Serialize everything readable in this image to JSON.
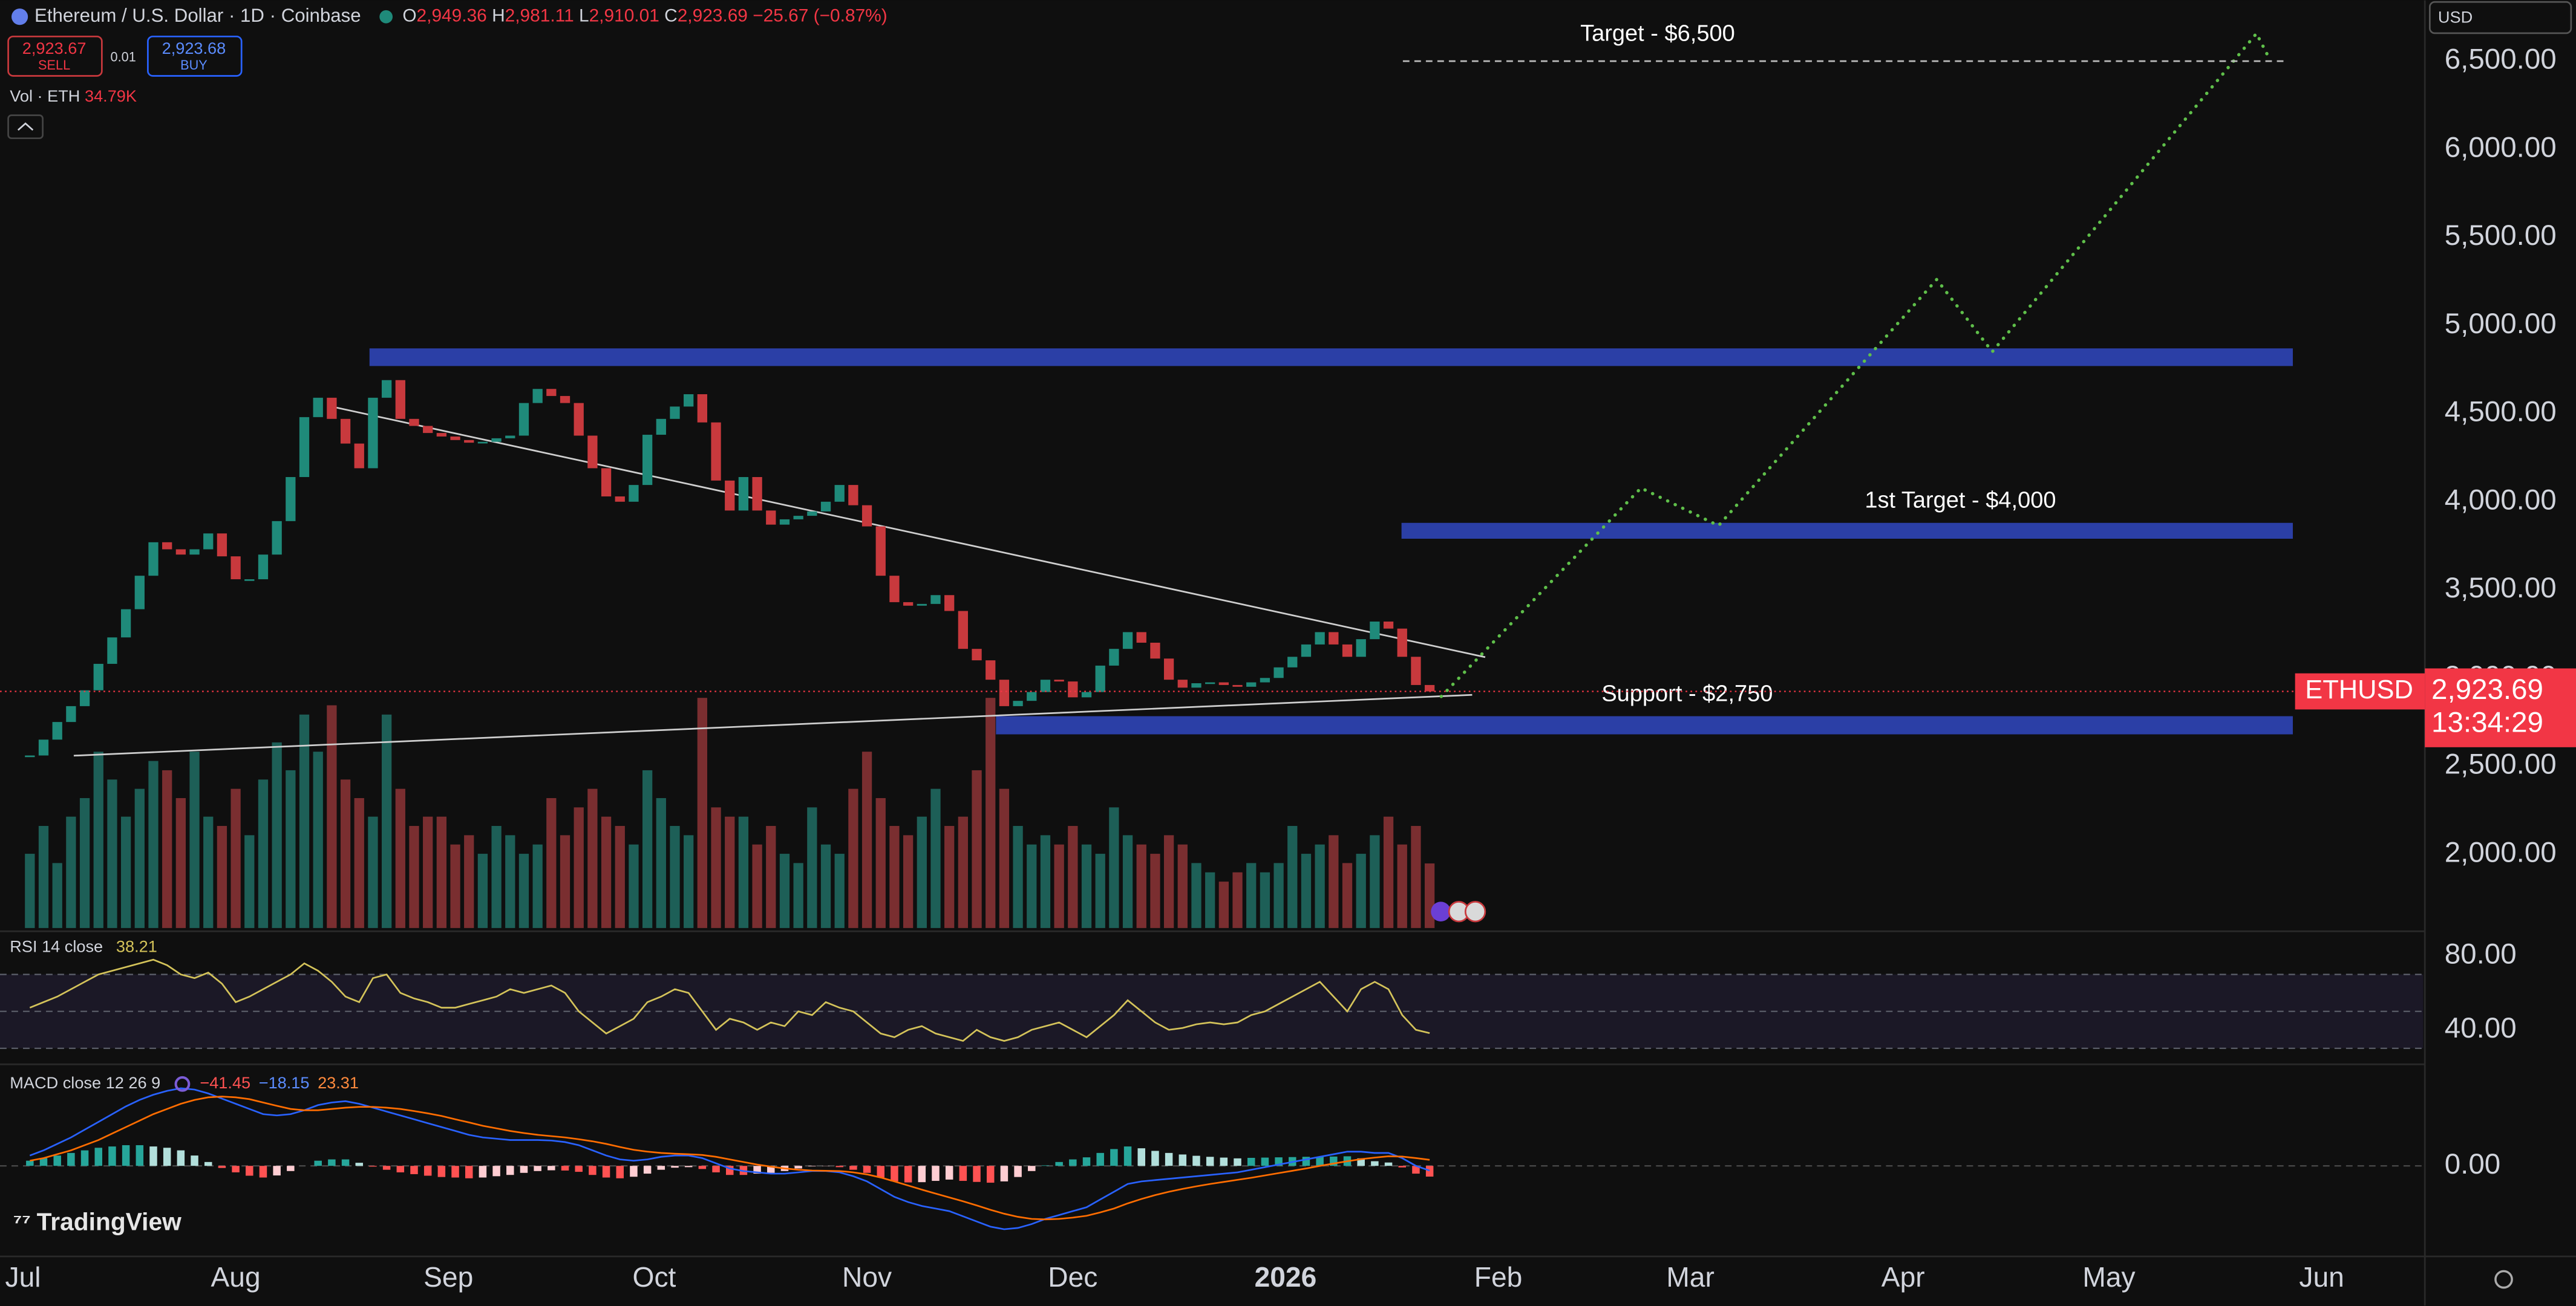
{
  "header": {
    "title": "Ethereum / U.S. Dollar · 1D · Coinbase",
    "open_label": "O",
    "open": "2,949.36",
    "high_label": "H",
    "high": "2,981.11",
    "low_label": "L",
    "low": "2,910.01",
    "close_label": "C",
    "close": "2,923.69",
    "change": "−25.67 (−0.87%)",
    "sell_price": "2,923.67",
    "sell": "SELL",
    "spread": "0.01",
    "buy_price": "2,923.68",
    "buy": "BUY",
    "volume_label": "Vol · ETH",
    "currency": "USD",
    "brand": "TradingView"
  },
  "chart_data": {
    "type": "candlestick",
    "x": [
      1,
      3,
      5,
      7,
      9,
      11,
      13,
      15,
      17,
      19,
      21,
      23,
      25,
      27,
      29,
      31,
      33,
      35,
      37,
      39,
      41,
      43,
      45,
      47,
      49,
      51,
      53,
      55,
      57,
      59,
      61,
      63,
      65,
      67,
      69,
      71,
      73,
      75,
      77,
      79,
      81,
      83,
      85,
      87,
      89,
      91,
      93,
      95,
      97,
      99,
      101,
      103,
      105,
      107,
      109,
      111,
      113,
      115,
      117,
      119,
      121,
      123,
      125,
      127,
      129,
      131,
      133,
      135,
      137,
      139,
      141,
      143,
      145,
      147,
      149,
      151,
      153,
      155,
      157,
      159,
      161,
      163,
      165,
      167,
      169,
      171,
      173,
      175,
      177,
      179,
      181,
      183,
      185,
      187,
      189,
      191,
      193,
      195,
      197,
      199,
      201,
      203,
      205
    ],
    "close": [
      2560,
      2650,
      2750,
      2840,
      2930,
      3080,
      3230,
      3390,
      3580,
      3770,
      3730,
      3700,
      3730,
      3820,
      3690,
      3560,
      3560,
      3700,
      3890,
      4140,
      4480,
      4590,
      4470,
      4330,
      4190,
      4590,
      4690,
      4470,
      4430,
      4390,
      4370,
      4350,
      4335,
      4340,
      4360,
      4375,
      4560,
      4640,
      4600,
      4560,
      4375,
      4190,
      4030,
      4000,
      4095,
      4380,
      4470,
      4540,
      4610,
      4450,
      4120,
      3950,
      4140,
      3950,
      3870,
      3900,
      3920,
      3945,
      4000,
      4095,
      3980,
      3860,
      3580,
      3430,
      3410,
      3420,
      3470,
      3380,
      3165,
      3100,
      2990,
      2840,
      2870,
      2920,
      2990,
      2980,
      2890,
      2920,
      3070,
      3165,
      3260,
      3200,
      3110,
      2990,
      2945,
      2970,
      2975,
      2960,
      2950,
      2975,
      3000,
      3060,
      3120,
      3190,
      3260,
      3190,
      3120,
      3220,
      3320,
      3280,
      3120,
      2960,
      2923.69
    ],
    "volume": [
      40,
      55,
      35,
      60,
      70,
      95,
      80,
      60,
      75,
      90,
      85,
      70,
      95,
      60,
      55,
      75,
      50,
      80,
      100,
      85,
      115,
      95,
      120,
      80,
      70,
      60,
      115,
      75,
      55,
      60,
      60,
      45,
      50,
      40,
      55,
      50,
      40,
      45,
      70,
      50,
      65,
      75,
      60,
      55,
      45,
      85,
      70,
      55,
      50,
      124,
      65,
      60,
      60,
      45,
      55,
      40,
      35,
      65,
      45,
      40,
      75,
      95,
      70,
      55,
      50,
      60,
      75,
      55,
      60,
      85,
      124,
      75,
      55,
      45,
      50,
      45,
      55,
      45,
      40,
      65,
      50,
      45,
      40,
      50,
      45,
      35,
      30,
      25,
      30,
      35,
      30,
      35,
      55,
      40,
      45,
      50,
      35,
      40,
      50,
      60,
      45,
      55,
      34.79
    ],
    "volume_value_label": "34.79K",
    "volume_ylim": [
      0,
      230
    ],
    "colors": {
      "up": "#1f8a7a",
      "down": "#c8393d",
      "volume_up": "#1d5f57",
      "volume_down": "#7a2e30"
    },
    "xlim": [
      -3.35,
      349.8
    ],
    "xticks": [
      {
        "value": 0,
        "label": "Jul"
      },
      {
        "value": 31,
        "label": "Aug"
      },
      {
        "value": 62,
        "label": "Sep"
      },
      {
        "value": 92,
        "label": "Oct"
      },
      {
        "value": 123,
        "label": "Nov"
      },
      {
        "value": 153,
        "label": "Dec"
      },
      {
        "value": 184,
        "label": "2026"
      },
      {
        "value": 215,
        "label": "Feb"
      },
      {
        "value": 243,
        "label": "Mar"
      },
      {
        "value": 274,
        "label": "Apr"
      },
      {
        "value": 304,
        "label": "May"
      },
      {
        "value": 335,
        "label": "Jun"
      }
    ],
    "ylim": [
      1581,
      6845
    ],
    "yticks": [
      {
        "value": 2000,
        "label": "2,000.00"
      },
      {
        "value": 2500,
        "label": "2,500.00"
      },
      {
        "value": 3000,
        "label": "3,000.00"
      },
      {
        "value": 3500,
        "label": "3,500.00"
      },
      {
        "value": 4000,
        "label": "4,000.00"
      },
      {
        "value": 4500,
        "label": "4,500.00"
      },
      {
        "value": 5000,
        "label": "5,000.00"
      },
      {
        "value": 5500,
        "label": "5,500.00"
      },
      {
        "value": 6000,
        "label": "6,000.00"
      },
      {
        "value": 6500,
        "label": "6,500.00"
      }
    ],
    "price_label": {
      "symbol": "ETHUSD",
      "value_label": "2,923.69",
      "countdown": "13:34:29",
      "color": "#f23645"
    },
    "zones": [
      {
        "range": [
          4770,
          4870
        ],
        "x": [
          50.5,
          330.8
        ]
      },
      {
        "label": "1st Target - $4,000",
        "range": [
          3790,
          3880
        ],
        "x": [
          200.9,
          330.8
        ]
      },
      {
        "label": "Support - $2,750",
        "range": [
          2680,
          2783
        ],
        "x": [
          141.8,
          330.8
        ]
      }
    ],
    "zone_color": "#2b3fa6",
    "target": {
      "label": "Target - $6,500",
      "value": 6500,
      "x": [
        201.1,
        330
      ]
    },
    "trendlines": [
      {
        "x": [
          45.7,
          213.1
        ],
        "y": [
          4534,
          3118
        ]
      },
      {
        "x": [
          7.4,
          211.2
        ],
        "y": [
          2559,
          2904
        ]
      }
    ],
    "projection": {
      "x": [
        206.7,
        235.8,
        247.1,
        278.9,
        287,
        325.5,
        327.2
      ],
      "y": [
        2895,
        4078,
        3864,
        5261,
        4851,
        6657,
        6528
      ],
      "color": "#5fbf4a"
    },
    "rsi": {
      "label": "RSI 14 close",
      "value_label": "38.21",
      "color": "#d4c35a",
      "ylim": [
        24,
        90.7
      ],
      "yticks": [
        {
          "value": 80,
          "label": "80.00"
        },
        {
          "value": 40,
          "label": "40.00"
        }
      ],
      "bands": [
        30,
        50,
        70
      ],
      "values": [
        52,
        55,
        58,
        62,
        66,
        70,
        72,
        74,
        76,
        78,
        75,
        70,
        68,
        71,
        65,
        55,
        58,
        62,
        66,
        70,
        76,
        72,
        66,
        58,
        55,
        68,
        70,
        60,
        57,
        55,
        52,
        52,
        54,
        56,
        58,
        62,
        60,
        62,
        64,
        60,
        50,
        44,
        38,
        42,
        46,
        55,
        58,
        62,
        60,
        50,
        40,
        46,
        44,
        40,
        44,
        42,
        50,
        48,
        55,
        52,
        50,
        44,
        38,
        36,
        40,
        42,
        38,
        36,
        34,
        40,
        36,
        34,
        36,
        40,
        42,
        44,
        40,
        36,
        42,
        48,
        56,
        50,
        44,
        40,
        41,
        43,
        44,
        43,
        44,
        48,
        50,
        54,
        58,
        62,
        66,
        58,
        50,
        62,
        66,
        62,
        48,
        40,
        38.21
      ]
    },
    "macd": {
      "label": "MACD close 12 26 9",
      "ylim": [
        -350,
        380
      ],
      "yticks": [
        {
          "value": 0,
          "label": "0.00"
        }
      ],
      "histogram": {
        "value_label": "−41.45",
        "colors": [
          "#26a69a",
          "#b2dfdb",
          "#ff5252",
          "#ffcdd2"
        ],
        "values": [
          20,
          30,
          40,
          50,
          60,
          70,
          75,
          80,
          80,
          75,
          70,
          60,
          40,
          15,
          -8,
          -25,
          -38,
          -45,
          -37,
          -20,
          0,
          20,
          25,
          25,
          12,
          -3,
          -15,
          -25,
          -32,
          -38,
          -43,
          -45,
          -48,
          -45,
          -40,
          -35,
          -27,
          -20,
          -17,
          -18,
          -23,
          -35,
          -45,
          -48,
          -42,
          -30,
          -15,
          -7,
          -5,
          -12,
          -25,
          -35,
          -35,
          -30,
          -27,
          -20,
          -10,
          -2,
          -1,
          -5,
          -15,
          -27,
          -45,
          -60,
          -64,
          -63,
          -58,
          -53,
          -58,
          -62,
          -65,
          -60,
          -43,
          -20,
          2,
          15,
          25,
          33,
          50,
          65,
          75,
          68,
          58,
          50,
          44,
          39,
          35,
          32,
          29,
          31,
          32,
          33,
          34,
          35,
          35,
          36,
          37,
          29,
          18,
          13,
          -6,
          -30,
          -41.45
        ]
      },
      "macd": {
        "value_label": "−18.15",
        "color": "#2962ff",
        "values": [
          40,
          60,
          85,
          110,
          140,
          170,
          200,
          230,
          255,
          275,
          290,
          300,
          295,
          280,
          260,
          240,
          220,
          200,
          195,
          200,
          215,
          235,
          245,
          250,
          240,
          225,
          210,
          195,
          180,
          165,
          150,
          135,
          120,
          110,
          105,
          100,
          100,
          100,
          98,
          92,
          80,
          60,
          40,
          25,
          20,
          25,
          35,
          40,
          40,
          30,
          10,
          -10,
          -20,
          -25,
          -30,
          -30,
          -25,
          -20,
          -20,
          -25,
          -40,
          -60,
          -90,
          -120,
          -140,
          -155,
          -165,
          -175,
          -195,
          -215,
          -235,
          -245,
          -240,
          -225,
          -205,
          -190,
          -175,
          -160,
          -130,
          -100,
          -70,
          -60,
          -55,
          -50,
          -45,
          -40,
          -35,
          -30,
          -25,
          -15,
          -5,
          5,
          15,
          25,
          35,
          45,
          55,
          55,
          50,
          50,
          30,
          0,
          -18.15
        ]
      },
      "signal": {
        "value_label": "23.31",
        "color": "#ff6d00",
        "values": [
          20,
          30,
          45,
          60,
          80,
          100,
          125,
          150,
          175,
          200,
          220,
          240,
          255,
          265,
          268,
          265,
          258,
          245,
          232,
          220,
          215,
          215,
          220,
          225,
          228,
          228,
          225,
          220,
          212,
          203,
          193,
          180,
          168,
          155,
          145,
          135,
          127,
          120,
          115,
          110,
          103,
          95,
          85,
          73,
          62,
          55,
          50,
          47,
          45,
          42,
          35,
          25,
          15,
          5,
          -3,
          -10,
          -15,
          -18,
          -19,
          -20,
          -25,
          -33,
          -45,
          -60,
          -76,
          -92,
          -107,
          -122,
          -137,
          -153,
          -170,
          -185,
          -197,
          -205,
          -207,
          -205,
          -200,
          -193,
          -180,
          -165,
          -145,
          -128,
          -113,
          -100,
          -89,
          -79,
          -70,
          -62,
          -54,
          -46,
          -37,
          -28,
          -19,
          -10,
          0,
          9,
          18,
          26,
          32,
          37,
          36,
          30,
          23.31
        ]
      }
    }
  }
}
